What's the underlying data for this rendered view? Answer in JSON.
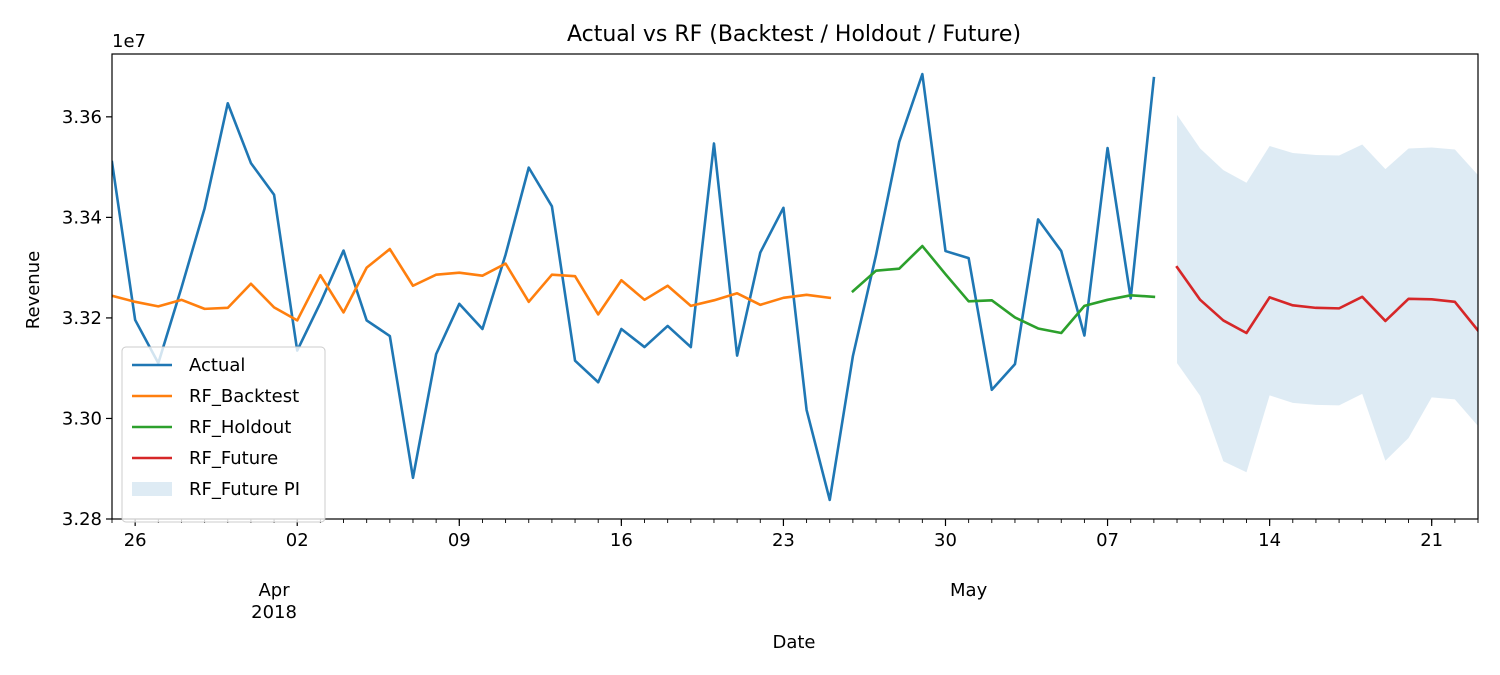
{
  "chart_data": {
    "type": "line",
    "title": "Actual vs RF (Backtest / Holdout / Future)",
    "xlabel": "Date",
    "ylabel": "Revenue",
    "y_scale_label": "1e7",
    "xlim": [
      "2018-03-25",
      "2018-05-23"
    ],
    "ylim": [
      32800000,
      33725000
    ],
    "grid": false,
    "legend_position": "lower-left",
    "y_ticks": [
      {
        "value": 32800000,
        "label": "3.28"
      },
      {
        "value": 33000000,
        "label": "3.30"
      },
      {
        "value": 33200000,
        "label": "3.32"
      },
      {
        "value": 33400000,
        "label": "3.34"
      },
      {
        "value": 33600000,
        "label": "3.36"
      }
    ],
    "x_major_ticks": [
      {
        "date": "2018-03-26",
        "label": "26"
      },
      {
        "date": "2018-04-02",
        "label": "02"
      },
      {
        "date": "2018-04-09",
        "label": "09"
      },
      {
        "date": "2018-04-16",
        "label": "16"
      },
      {
        "date": "2018-04-23",
        "label": "23"
      },
      {
        "date": "2018-04-30",
        "label": "30"
      },
      {
        "date": "2018-05-07",
        "label": "07"
      },
      {
        "date": "2018-05-14",
        "label": "14"
      },
      {
        "date": "2018-05-21",
        "label": "21"
      }
    ],
    "x_group_labels": [
      {
        "date": "2018-04-01",
        "lines": [
          "Apr",
          "2018"
        ]
      },
      {
        "date": "2018-05-01",
        "lines": [
          "May"
        ]
      }
    ],
    "series": [
      {
        "name": "Actual",
        "color": "#1f77b4",
        "start_date": "2018-03-25",
        "values": [
          33510000,
          33196000,
          33110000,
          33260000,
          33418000,
          33627000,
          33508000,
          33445000,
          33135000,
          33230000,
          33334000,
          33195000,
          33164000,
          32882000,
          33128000,
          33228000,
          33178000,
          33326000,
          33499000,
          33422000,
          33115000,
          33072000,
          33178000,
          33142000,
          33184000,
          33142000,
          33547000,
          33125000,
          33330000,
          33419000,
          33017000,
          32838000,
          33124000,
          33325000,
          33550000,
          33685000,
          33333000,
          33319000,
          33057000,
          33108000,
          33396000,
          33333000,
          33165000,
          33538000,
          33239000,
          33677000
        ]
      },
      {
        "name": "RF_Backtest",
        "color": "#ff7f0e",
        "start_date": "2018-03-25",
        "values": [
          33244000,
          33232000,
          33223000,
          33236000,
          33218000,
          33220000,
          33268000,
          33221000,
          33195000,
          33285000,
          33211000,
          33300000,
          33337000,
          33264000,
          33286000,
          33290000,
          33284000,
          33308000,
          33232000,
          33286000,
          33283000,
          33207000,
          33275000,
          33236000,
          33264000,
          33224000,
          33235000,
          33249000,
          33226000,
          33240000,
          33246000,
          33240000
        ]
      },
      {
        "name": "RF_Holdout",
        "color": "#2ca02c",
        "start_date": "2018-04-26",
        "values": [
          33253000,
          33294000,
          33298000,
          33343000,
          33287000,
          33233000,
          33235000,
          33201000,
          33179000,
          33170000,
          33224000,
          33236000,
          33245000,
          33242000
        ]
      },
      {
        "name": "RF_Future",
        "color": "#d62728",
        "start_date": "2018-05-10",
        "values": [
          33301000,
          33236000,
          33195000,
          33170000,
          33241000,
          33225000,
          33220000,
          33219000,
          33242000,
          33194000,
          33238000,
          33237000,
          33232000,
          33175000
        ]
      },
      {
        "name": "RF_Future PI",
        "color": "#1f77b4",
        "type": "band",
        "start_date": "2018-05-10",
        "lower": [
          33110000,
          33045000,
          32915000,
          32893000,
          33046000,
          33031000,
          33027000,
          33026000,
          33049000,
          32916000,
          32961000,
          33042000,
          33038000,
          32985000
        ],
        "upper": [
          33604000,
          33537000,
          33494000,
          33469000,
          33542000,
          33528000,
          33524000,
          33523000,
          33545000,
          33496000,
          33537000,
          33539000,
          33535000,
          33484000
        ]
      }
    ]
  }
}
